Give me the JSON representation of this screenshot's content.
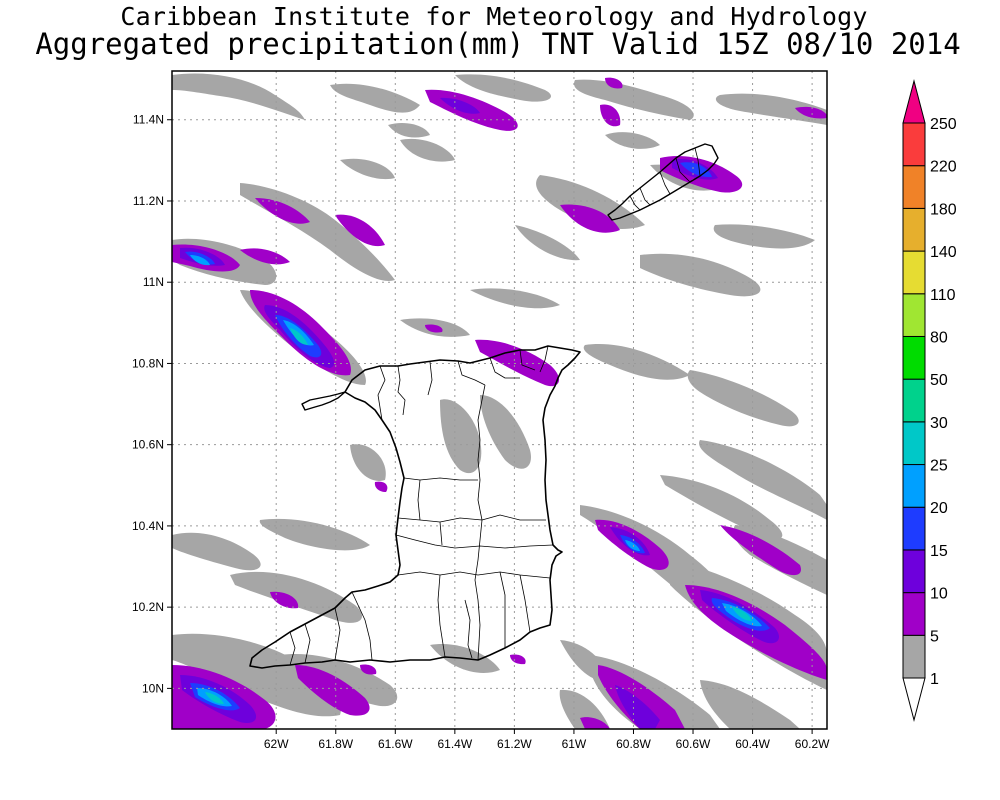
{
  "title": {
    "line1": "Caribbean Institute for Meteorology and Hydrology",
    "line2": "Aggregated precipitation(mm) TNT Valid 15Z 08/10 2014"
  },
  "map": {
    "lon_range": [
      -62.35,
      -60.15
    ],
    "lat_range": [
      9.9,
      11.52
    ],
    "x_ticks": [
      "62W",
      "61.8W",
      "61.6W",
      "61.4W",
      "61.2W",
      "61W",
      "60.8W",
      "60.6W",
      "60.4W",
      "60.2W"
    ],
    "x_tick_values": [
      -62.0,
      -61.8,
      -61.6,
      -61.4,
      -61.2,
      -61.0,
      -60.8,
      -60.6,
      -60.4,
      -60.2
    ],
    "y_ticks": [
      "10N",
      "10.2N",
      "10.4N",
      "10.6N",
      "10.8N",
      "11N",
      "11.2N",
      "11.4N"
    ],
    "y_tick_values": [
      10.0,
      10.2,
      10.4,
      10.6,
      10.8,
      11.0,
      11.2,
      11.4
    ],
    "grid": true,
    "background": "#ffffff"
  },
  "legend": {
    "levels": [
      {
        "label": "1",
        "color": "#ffffff"
      },
      {
        "label": "5",
        "color": "#a6a6a6"
      },
      {
        "label": "10",
        "color": "#a000c8"
      },
      {
        "label": "15",
        "color": "#6e00dc"
      },
      {
        "label": "20",
        "color": "#1e3cff"
      },
      {
        "label": "25",
        "color": "#00a0ff"
      },
      {
        "label": "30",
        "color": "#00c8c8"
      },
      {
        "label": "50",
        "color": "#00d28c"
      },
      {
        "label": "80",
        "color": "#00dc00"
      },
      {
        "label": "110",
        "color": "#a0e632"
      },
      {
        "label": "140",
        "color": "#e6dc32"
      },
      {
        "label": "180",
        "color": "#e6af2d"
      },
      {
        "label": "220",
        "color": "#f08228"
      },
      {
        "label": "250",
        "color": "#fa3c3c"
      }
    ],
    "top_arrow_color": "#f00082",
    "bottom_arrow_color": "#ffffff"
  },
  "precip_colors": {
    "light": "#a6a6a6",
    "c10": "#a000c8",
    "c15": "#6e00dc",
    "c20": "#1e3cff",
    "c25": "#00a0ff",
    "c30": "#00c8c8"
  }
}
